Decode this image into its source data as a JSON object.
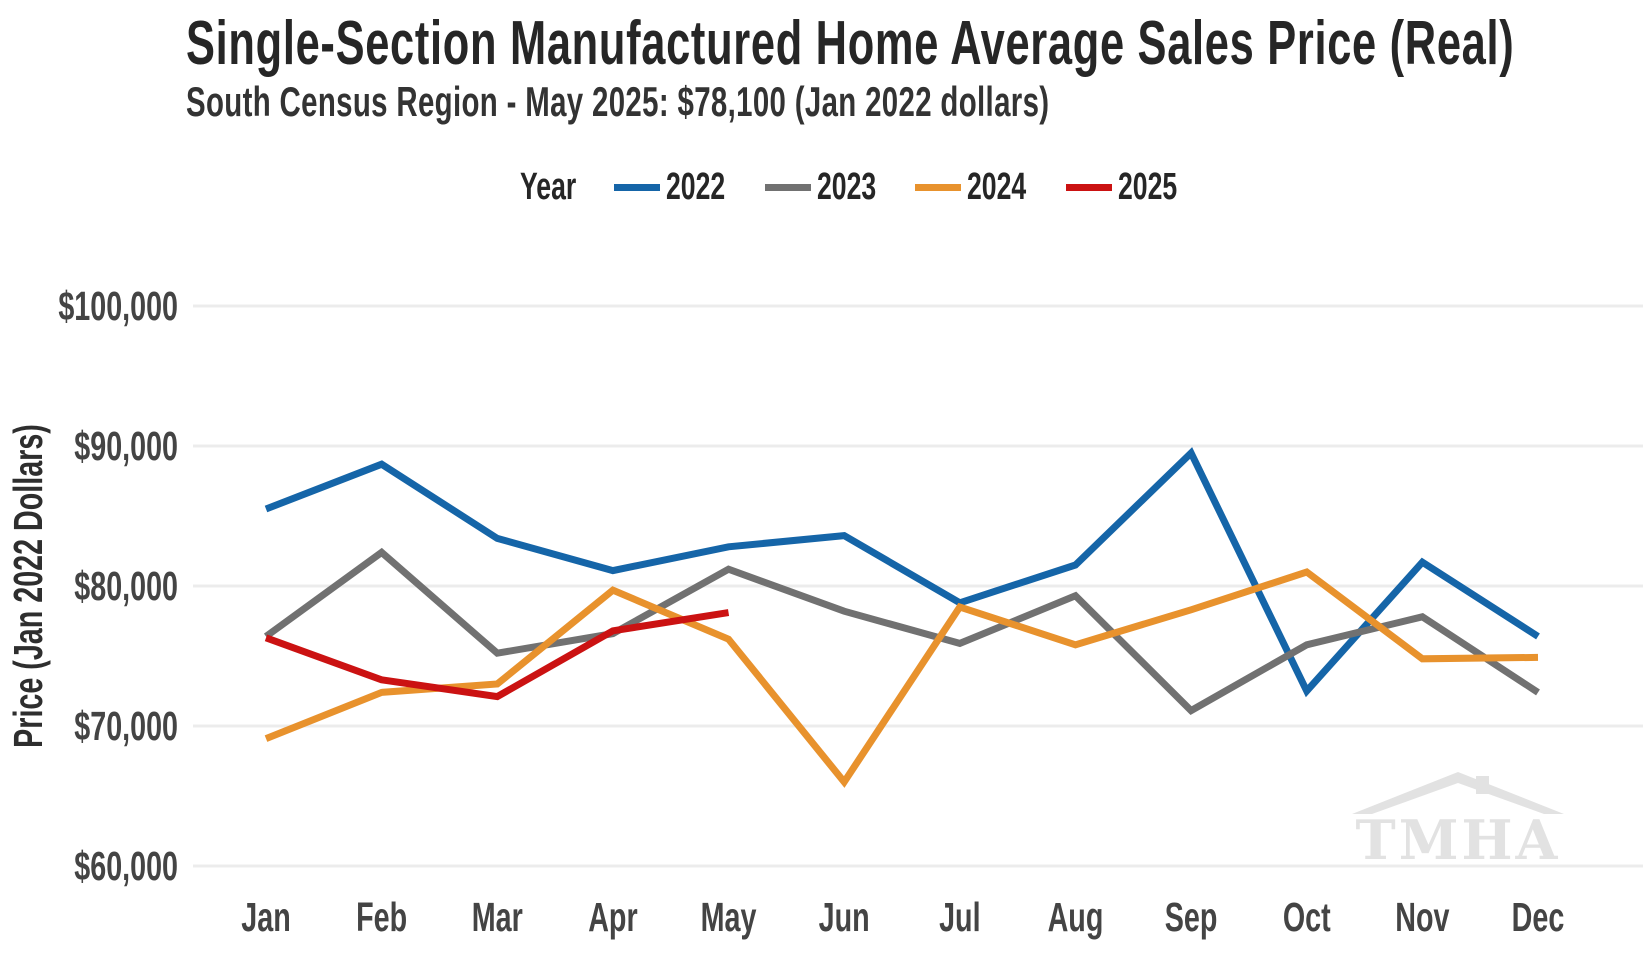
{
  "header": {
    "title": "Single-Section Manufactured Home Average Sales Price (Real)",
    "subtitle": "South Census Region - May 2025: $78,100 (Jan 2022 dollars)"
  },
  "legend": {
    "title": "Year"
  },
  "watermark": {
    "text": "TMHA"
  },
  "colors": {
    "grid": "#ececec",
    "tick_text": "#444444",
    "axis_title_text": "#2e2e2e",
    "watermark": "#e2e2e2"
  },
  "chart_data": {
    "type": "line",
    "title": "Single-Section Manufactured Home Average Sales Price (Real)",
    "subtitle": "South Census Region - May 2025: $78,100 (Jan 2022 dollars)",
    "xlabel": "",
    "ylabel": "Price (Jan 2022 Dollars)",
    "categories": [
      "Jan",
      "Feb",
      "Mar",
      "Apr",
      "May",
      "Jun",
      "Jul",
      "Aug",
      "Sep",
      "Oct",
      "Nov",
      "Dec"
    ],
    "ylim": [
      60000,
      100000
    ],
    "yticks": [
      100000,
      90000,
      80000,
      70000,
      60000
    ],
    "ytick_labels": [
      "$100,000",
      "$90,000",
      "$80,000",
      "$70,000",
      "$60,000"
    ],
    "grid": true,
    "legend_position": "top",
    "series": [
      {
        "name": "2022",
        "color": "#1565a8",
        "values": [
          85500,
          88700,
          83400,
          81100,
          82800,
          83600,
          78800,
          81500,
          89500,
          72500,
          81700,
          76400
        ]
      },
      {
        "name": "2023",
        "color": "#717171",
        "values": [
          76400,
          82400,
          75200,
          76600,
          81200,
          78200,
          75900,
          79300,
          71100,
          75800,
          77800,
          72400
        ]
      },
      {
        "name": "2024",
        "color": "#e8922d",
        "values": [
          69100,
          72400,
          73000,
          79700,
          76200,
          66000,
          78500,
          75800,
          78300,
          81000,
          74800,
          74900
        ]
      },
      {
        "name": "2025",
        "color": "#cb1212",
        "values": [
          76300,
          73300,
          72100,
          76800,
          78100
        ]
      }
    ]
  }
}
